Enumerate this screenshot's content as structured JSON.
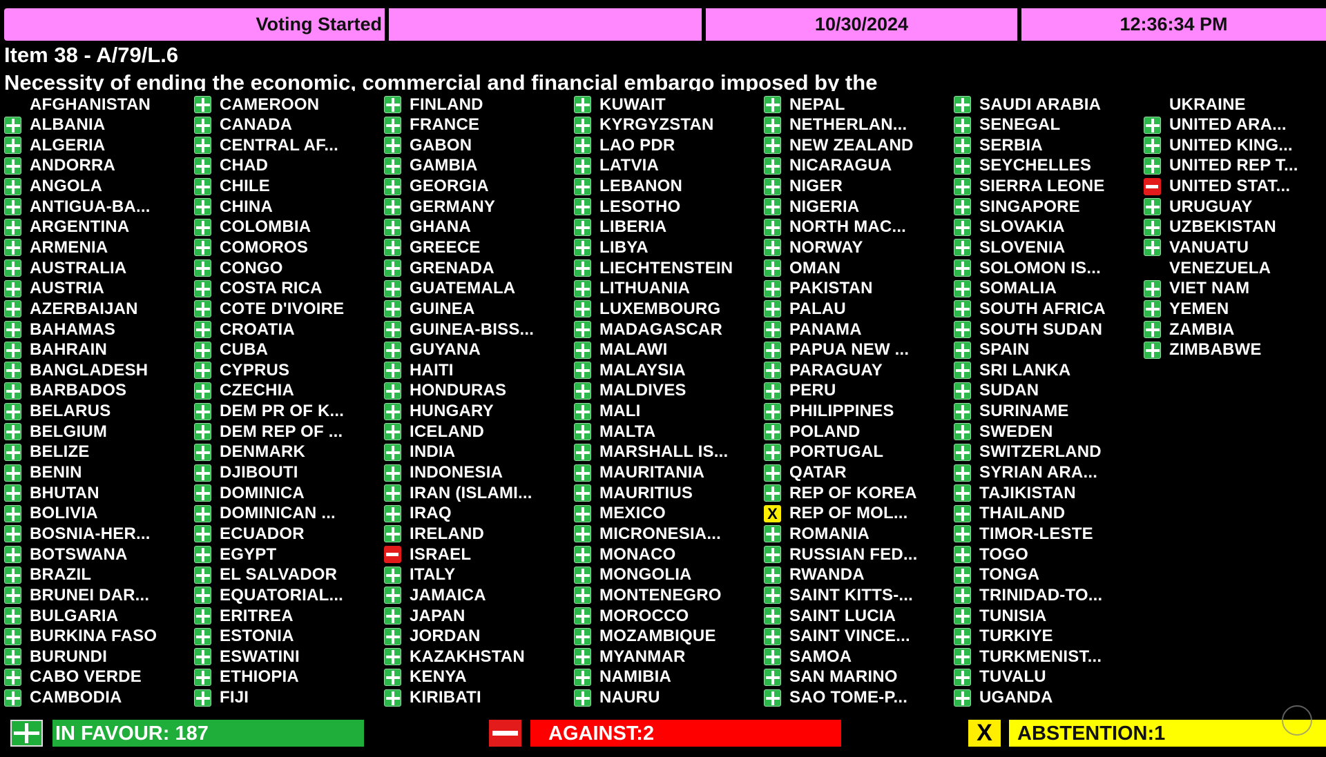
{
  "header": {
    "status": "Voting Started",
    "blank": "",
    "date": "10/30/2024",
    "time": "12:36:34 PM"
  },
  "item": "Item 38 - A/79/L.6",
  "title": "Necessity of ending the economic, commercial and financial embargo imposed by the",
  "colors": {
    "header_bg": "#ff88ff",
    "yes": "#1fae3a",
    "no": "#ff0000",
    "abstain": "#ffff00"
  },
  "vote_icons": {
    "Y": "plus-icon",
    "N": "minus-icon",
    "A": "x-icon"
  },
  "columns": [
    [
      [
        "AFGHANISTAN",
        ""
      ],
      [
        "ALBANIA",
        "Y"
      ],
      [
        "ALGERIA",
        "Y"
      ],
      [
        "ANDORRA",
        "Y"
      ],
      [
        "ANGOLA",
        "Y"
      ],
      [
        "ANTIGUA-BA...",
        "Y"
      ],
      [
        "ARGENTINA",
        "Y"
      ],
      [
        "ARMENIA",
        "Y"
      ],
      [
        "AUSTRALIA",
        "Y"
      ],
      [
        "AUSTRIA",
        "Y"
      ],
      [
        "AZERBAIJAN",
        "Y"
      ],
      [
        "BAHAMAS",
        "Y"
      ],
      [
        "BAHRAIN",
        "Y"
      ],
      [
        "BANGLADESH",
        "Y"
      ],
      [
        "BARBADOS",
        "Y"
      ],
      [
        "BELARUS",
        "Y"
      ],
      [
        "BELGIUM",
        "Y"
      ],
      [
        "BELIZE",
        "Y"
      ],
      [
        "BENIN",
        "Y"
      ],
      [
        "BHUTAN",
        "Y"
      ],
      [
        "BOLIVIA",
        "Y"
      ],
      [
        "BOSNIA-HER...",
        "Y"
      ],
      [
        "BOTSWANA",
        "Y"
      ],
      [
        "BRAZIL",
        "Y"
      ],
      [
        "BRUNEI DAR...",
        "Y"
      ],
      [
        "BULGARIA",
        "Y"
      ],
      [
        "BURKINA FASO",
        "Y"
      ],
      [
        "BURUNDI",
        "Y"
      ],
      [
        "CABO VERDE",
        "Y"
      ],
      [
        "CAMBODIA",
        "Y"
      ]
    ],
    [
      [
        "CAMEROON",
        "Y"
      ],
      [
        "CANADA",
        "Y"
      ],
      [
        "CENTRAL AF...",
        "Y"
      ],
      [
        "CHAD",
        "Y"
      ],
      [
        "CHILE",
        "Y"
      ],
      [
        "CHINA",
        "Y"
      ],
      [
        "COLOMBIA",
        "Y"
      ],
      [
        "COMOROS",
        "Y"
      ],
      [
        "CONGO",
        "Y"
      ],
      [
        "COSTA RICA",
        "Y"
      ],
      [
        "COTE D'IVOIRE",
        "Y"
      ],
      [
        "CROATIA",
        "Y"
      ],
      [
        "CUBA",
        "Y"
      ],
      [
        "CYPRUS",
        "Y"
      ],
      [
        "CZECHIA",
        "Y"
      ],
      [
        "DEM PR OF K...",
        "Y"
      ],
      [
        "DEM REP OF ...",
        "Y"
      ],
      [
        "DENMARK",
        "Y"
      ],
      [
        "DJIBOUTI",
        "Y"
      ],
      [
        "DOMINICA",
        "Y"
      ],
      [
        "DOMINICAN ...",
        "Y"
      ],
      [
        "ECUADOR",
        "Y"
      ],
      [
        "EGYPT",
        "Y"
      ],
      [
        "EL SALVADOR",
        "Y"
      ],
      [
        "EQUATORIAL...",
        "Y"
      ],
      [
        "ERITREA",
        "Y"
      ],
      [
        "ESTONIA",
        "Y"
      ],
      [
        "ESWATINI",
        "Y"
      ],
      [
        "ETHIOPIA",
        "Y"
      ],
      [
        "FIJI",
        "Y"
      ]
    ],
    [
      [
        "FINLAND",
        "Y"
      ],
      [
        "FRANCE",
        "Y"
      ],
      [
        "GABON",
        "Y"
      ],
      [
        "GAMBIA",
        "Y"
      ],
      [
        "GEORGIA",
        "Y"
      ],
      [
        "GERMANY",
        "Y"
      ],
      [
        "GHANA",
        "Y"
      ],
      [
        "GREECE",
        "Y"
      ],
      [
        "GRENADA",
        "Y"
      ],
      [
        "GUATEMALA",
        "Y"
      ],
      [
        "GUINEA",
        "Y"
      ],
      [
        "GUINEA-BISS...",
        "Y"
      ],
      [
        "GUYANA",
        "Y"
      ],
      [
        "HAITI",
        "Y"
      ],
      [
        "HONDURAS",
        "Y"
      ],
      [
        "HUNGARY",
        "Y"
      ],
      [
        "ICELAND",
        "Y"
      ],
      [
        "INDIA",
        "Y"
      ],
      [
        "INDONESIA",
        "Y"
      ],
      [
        "IRAN (ISLAMI...",
        "Y"
      ],
      [
        "IRAQ",
        "Y"
      ],
      [
        "IRELAND",
        "Y"
      ],
      [
        "ISRAEL",
        "N"
      ],
      [
        "ITALY",
        "Y"
      ],
      [
        "JAMAICA",
        "Y"
      ],
      [
        "JAPAN",
        "Y"
      ],
      [
        "JORDAN",
        "Y"
      ],
      [
        "KAZAKHSTAN",
        "Y"
      ],
      [
        "KENYA",
        "Y"
      ],
      [
        "KIRIBATI",
        "Y"
      ]
    ],
    [
      [
        "KUWAIT",
        "Y"
      ],
      [
        "KYRGYZSTAN",
        "Y"
      ],
      [
        "LAO PDR",
        "Y"
      ],
      [
        "LATVIA",
        "Y"
      ],
      [
        "LEBANON",
        "Y"
      ],
      [
        "LESOTHO",
        "Y"
      ],
      [
        "LIBERIA",
        "Y"
      ],
      [
        "LIBYA",
        "Y"
      ],
      [
        "LIECHTENSTEIN",
        "Y"
      ],
      [
        "LITHUANIA",
        "Y"
      ],
      [
        "LUXEMBOURG",
        "Y"
      ],
      [
        "MADAGASCAR",
        "Y"
      ],
      [
        "MALAWI",
        "Y"
      ],
      [
        "MALAYSIA",
        "Y"
      ],
      [
        "MALDIVES",
        "Y"
      ],
      [
        "MALI",
        "Y"
      ],
      [
        "MALTA",
        "Y"
      ],
      [
        "MARSHALL IS...",
        "Y"
      ],
      [
        "MAURITANIA",
        "Y"
      ],
      [
        "MAURITIUS",
        "Y"
      ],
      [
        "MEXICO",
        "Y"
      ],
      [
        "MICRONESIA...",
        "Y"
      ],
      [
        "MONACO",
        "Y"
      ],
      [
        "MONGOLIA",
        "Y"
      ],
      [
        "MONTENEGRO",
        "Y"
      ],
      [
        "MOROCCO",
        "Y"
      ],
      [
        "MOZAMBIQUE",
        "Y"
      ],
      [
        "MYANMAR",
        "Y"
      ],
      [
        "NAMIBIA",
        "Y"
      ],
      [
        "NAURU",
        "Y"
      ]
    ],
    [
      [
        "NEPAL",
        "Y"
      ],
      [
        "NETHERLAN...",
        "Y"
      ],
      [
        "NEW ZEALAND",
        "Y"
      ],
      [
        "NICARAGUA",
        "Y"
      ],
      [
        "NIGER",
        "Y"
      ],
      [
        "NIGERIA",
        "Y"
      ],
      [
        "NORTH MAC...",
        "Y"
      ],
      [
        "NORWAY",
        "Y"
      ],
      [
        "OMAN",
        "Y"
      ],
      [
        "PAKISTAN",
        "Y"
      ],
      [
        "PALAU",
        "Y"
      ],
      [
        "PANAMA",
        "Y"
      ],
      [
        "PAPUA NEW ...",
        "Y"
      ],
      [
        "PARAGUAY",
        "Y"
      ],
      [
        "PERU",
        "Y"
      ],
      [
        "PHILIPPINES",
        "Y"
      ],
      [
        "POLAND",
        "Y"
      ],
      [
        "PORTUGAL",
        "Y"
      ],
      [
        "QATAR",
        "Y"
      ],
      [
        "REP OF KOREA",
        "Y"
      ],
      [
        "REP OF MOL...",
        "A"
      ],
      [
        "ROMANIA",
        "Y"
      ],
      [
        "RUSSIAN FED...",
        "Y"
      ],
      [
        "RWANDA",
        "Y"
      ],
      [
        "SAINT KITTS-...",
        "Y"
      ],
      [
        "SAINT LUCIA",
        "Y"
      ],
      [
        "SAINT VINCE...",
        "Y"
      ],
      [
        "SAMOA",
        "Y"
      ],
      [
        "SAN MARINO",
        "Y"
      ],
      [
        "SAO TOME-P...",
        "Y"
      ]
    ],
    [
      [
        "SAUDI ARABIA",
        "Y"
      ],
      [
        "SENEGAL",
        "Y"
      ],
      [
        "SERBIA",
        "Y"
      ],
      [
        "SEYCHELLES",
        "Y"
      ],
      [
        "SIERRA LEONE",
        "Y"
      ],
      [
        "SINGAPORE",
        "Y"
      ],
      [
        "SLOVAKIA",
        "Y"
      ],
      [
        "SLOVENIA",
        "Y"
      ],
      [
        "SOLOMON IS...",
        "Y"
      ],
      [
        "SOMALIA",
        "Y"
      ],
      [
        "SOUTH AFRICA",
        "Y"
      ],
      [
        "SOUTH SUDAN",
        "Y"
      ],
      [
        "SPAIN",
        "Y"
      ],
      [
        "SRI LANKA",
        "Y"
      ],
      [
        "SUDAN",
        "Y"
      ],
      [
        "SURINAME",
        "Y"
      ],
      [
        "SWEDEN",
        "Y"
      ],
      [
        "SWITZERLAND",
        "Y"
      ],
      [
        "SYRIAN ARA...",
        "Y"
      ],
      [
        "TAJIKISTAN",
        "Y"
      ],
      [
        "THAILAND",
        "Y"
      ],
      [
        "TIMOR-LESTE",
        "Y"
      ],
      [
        "TOGO",
        "Y"
      ],
      [
        "TONGA",
        "Y"
      ],
      [
        "TRINIDAD-TO...",
        "Y"
      ],
      [
        "TUNISIA",
        "Y"
      ],
      [
        "TURKIYE",
        "Y"
      ],
      [
        "TURKMENIST...",
        "Y"
      ],
      [
        "TUVALU",
        "Y"
      ],
      [
        "UGANDA",
        "Y"
      ]
    ],
    [
      [
        "UKRAINE",
        ""
      ],
      [
        "UNITED ARA...",
        "Y"
      ],
      [
        "UNITED KING...",
        "Y"
      ],
      [
        "UNITED REP T...",
        "Y"
      ],
      [
        "UNITED STAT...",
        "N"
      ],
      [
        "URUGUAY",
        "Y"
      ],
      [
        "UZBEKISTAN",
        "Y"
      ],
      [
        "VANUATU",
        "Y"
      ],
      [
        "VENEZUELA",
        ""
      ],
      [
        "VIET NAM",
        "Y"
      ],
      [
        "YEMEN",
        "Y"
      ],
      [
        "ZAMBIA",
        "Y"
      ],
      [
        "ZIMBABWE",
        "Y"
      ]
    ]
  ],
  "totals": {
    "in_favour": "IN FAVOUR: 187",
    "against": "AGAINST:2",
    "abstention": "ABSTENTION:1",
    "abstain_glyph": "X"
  }
}
